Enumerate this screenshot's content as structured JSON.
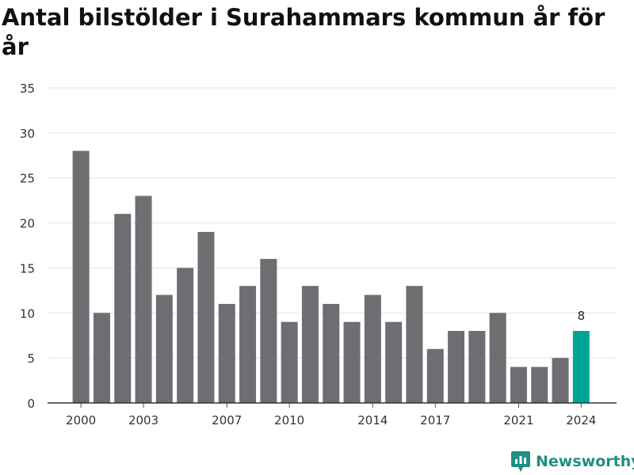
{
  "chart_data": {
    "type": "bar",
    "title": "Antal bilstölder i Surahammars kommun år för år",
    "xlabel": "",
    "ylabel": "",
    "categories": [
      "2000",
      "2001",
      "2002",
      "2003",
      "2004",
      "2005",
      "2006",
      "2007",
      "2008",
      "2009",
      "2010",
      "2011",
      "2012",
      "2013",
      "2014",
      "2015",
      "2016",
      "2017",
      "2018",
      "2019",
      "2020",
      "2021",
      "2022",
      "2023",
      "2024"
    ],
    "values": [
      28,
      10,
      21,
      23,
      12,
      15,
      19,
      11,
      13,
      16,
      9,
      13,
      11,
      9,
      12,
      9,
      13,
      6,
      8,
      8,
      10,
      4,
      4,
      5,
      8
    ],
    "x_tick_labels": [
      "2000",
      "2003",
      "2007",
      "2010",
      "2014",
      "2017",
      "2021",
      "2024"
    ],
    "y_ticks": [
      0,
      5,
      10,
      15,
      20,
      25,
      30,
      35
    ],
    "ylim": [
      0,
      35
    ],
    "grid": true,
    "highlight": {
      "category": "2024",
      "label": "8",
      "color": "#00a398"
    },
    "bar_color": "#6e6d72"
  },
  "brand": {
    "name": "Newsworthy",
    "icon": "newsworthy-logo-icon",
    "color": "#1f8f84"
  }
}
